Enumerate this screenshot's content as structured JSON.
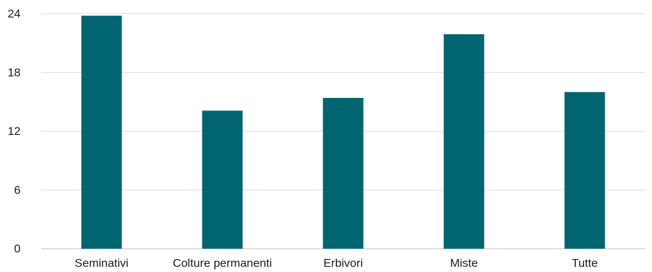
{
  "chart_data": {
    "type": "bar",
    "title": "",
    "xlabel": "",
    "ylabel": "",
    "categories": [
      "Seminativi",
      "Colture permanenti",
      "Erbivori",
      "Miste",
      "Tutte"
    ],
    "values": [
      23.8,
      14.1,
      15.4,
      21.9,
      16.0
    ],
    "ylim": [
      0,
      24
    ],
    "yticks": [
      "0",
      "6",
      "12",
      "18",
      "24"
    ],
    "grid": true,
    "bar_color": "#006570"
  }
}
